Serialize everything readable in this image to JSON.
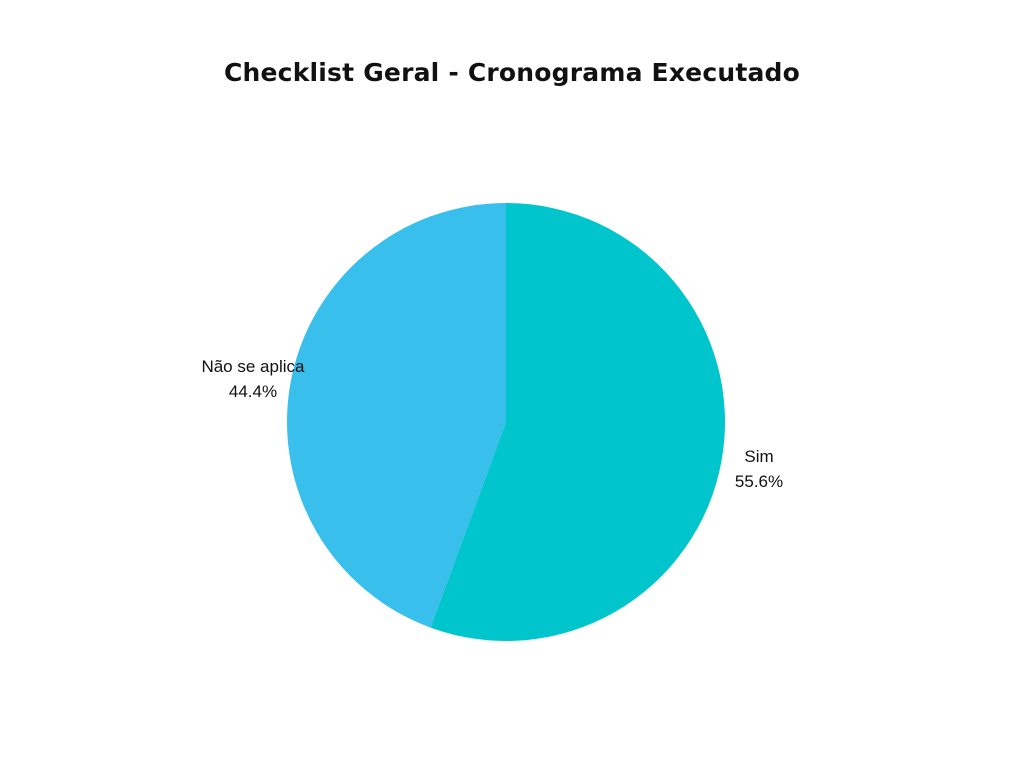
{
  "chart_data": {
    "type": "pie",
    "title": "Checklist Geral - Cronograma Executado",
    "slices": [
      {
        "label": "Sim",
        "value": 55.6,
        "percent_label": "55.6%",
        "color": "#00c5cd"
      },
      {
        "label": "Não se aplica",
        "value": 44.4,
        "percent_label": "44.4%",
        "color": "#38bfec"
      }
    ],
    "start": "top",
    "direction": "clockwise",
    "legend": "none"
  }
}
